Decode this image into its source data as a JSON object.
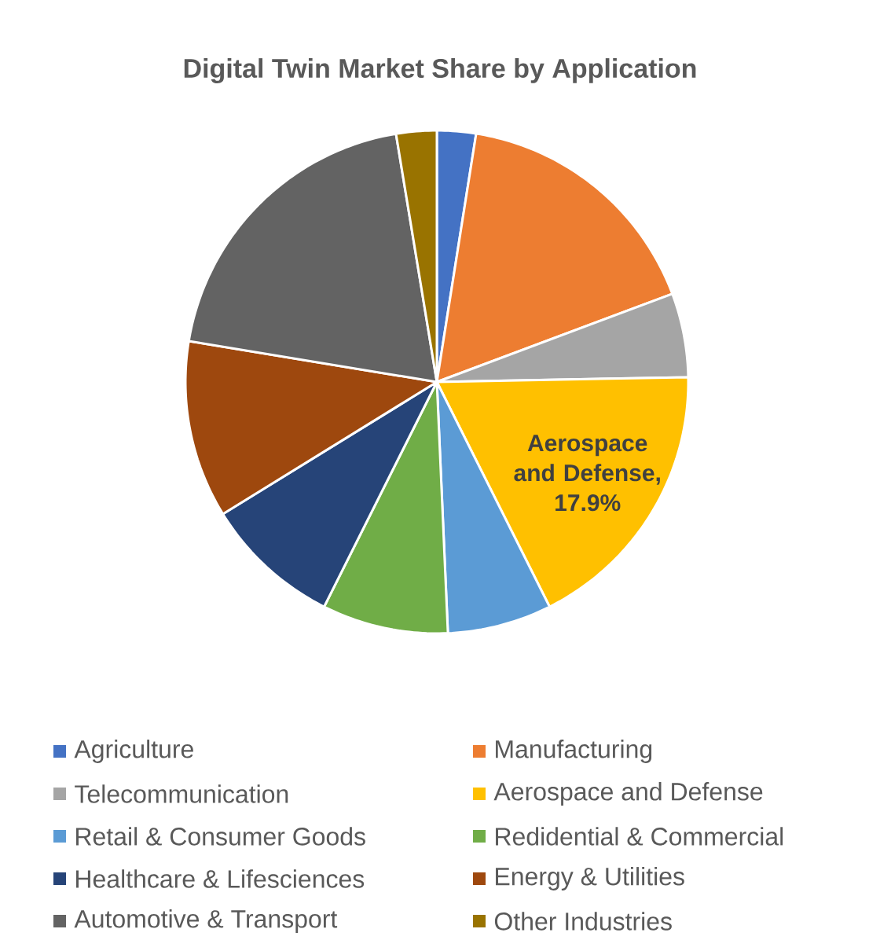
{
  "chart_data": {
    "type": "pie",
    "title": "Digital Twin Market Share by Application",
    "categories": [
      "Agriculture",
      "Manufacturing",
      "Telecommunication",
      "Aerospace and Defense",
      "Retail & Consumer Goods",
      "Redidential & Commercial",
      "Healthcare & Lifesciences",
      "Energy & Utilities",
      "Automotive & Transport",
      "Other Industries"
    ],
    "values": [
      2.5,
      16.8,
      5.4,
      17.9,
      6.7,
      8.1,
      8.8,
      11.4,
      19.8,
      2.6
    ],
    "colors": [
      "#4472c4",
      "#ed7d31",
      "#a5a5a5",
      "#ffc000",
      "#5b9bd5",
      "#70ad47",
      "#264478",
      "#9e480e",
      "#636363",
      "#997300"
    ],
    "value_labels": [
      null,
      null,
      null,
      "Aerospace and Defense, 17.9%",
      null,
      null,
      null,
      null,
      null,
      null
    ],
    "legend": "bottom"
  }
}
